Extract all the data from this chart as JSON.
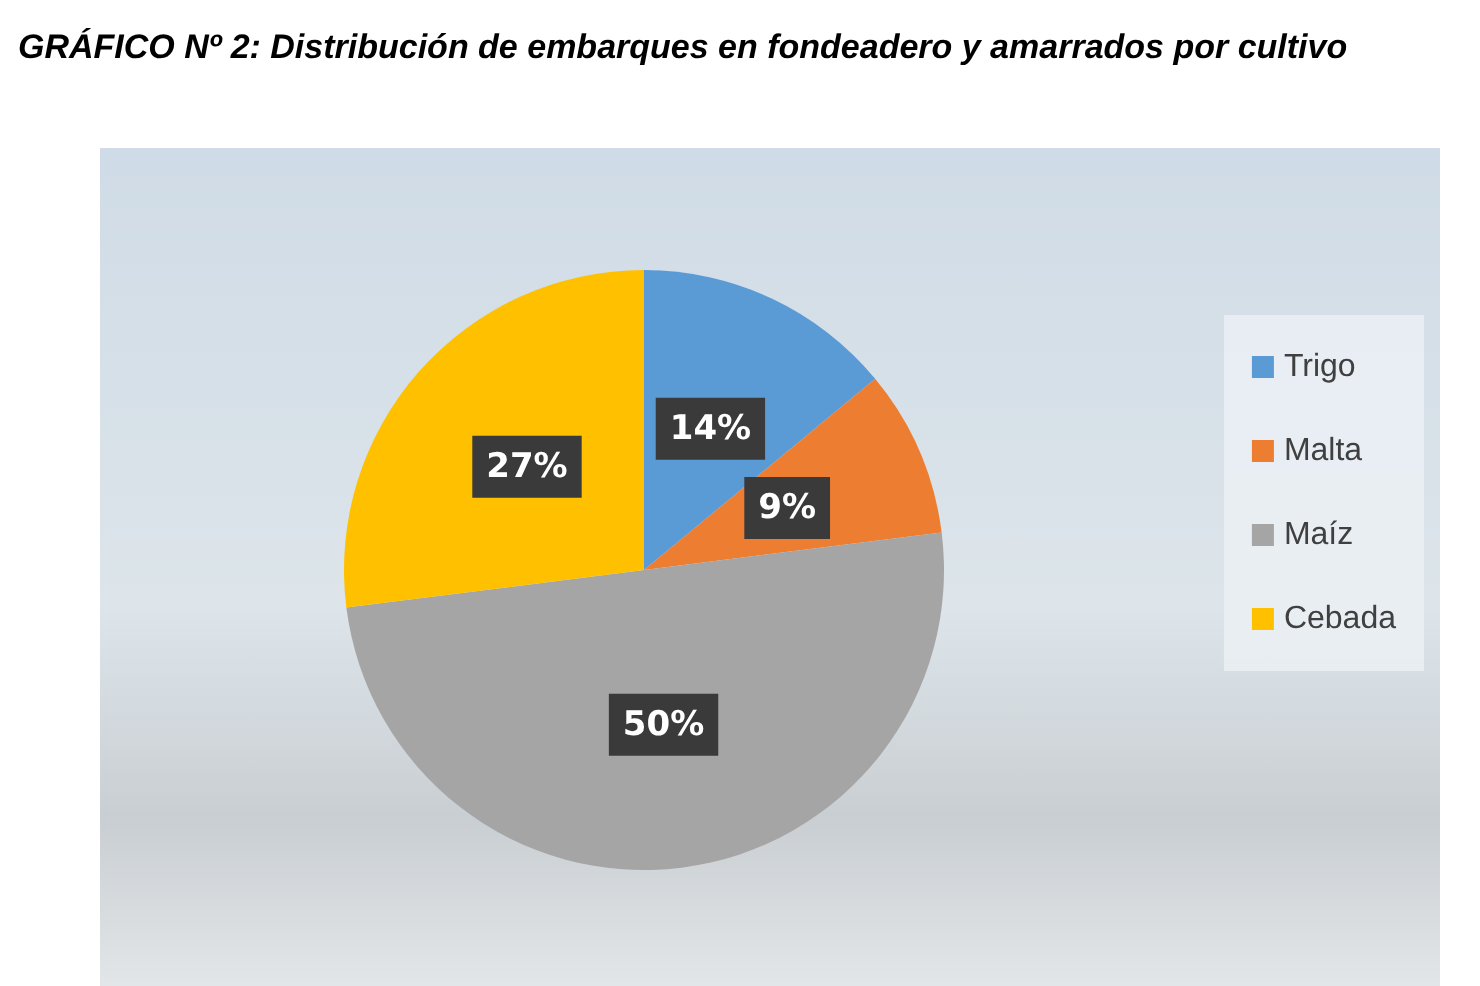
{
  "chart_data": {
    "type": "pie",
    "title": "GRÁFICO Nº 2: Distribución de embarques en fondeadero y amarrados por cultivo",
    "categories": [
      "Trigo",
      "Malta",
      "Maíz",
      "Cebada"
    ],
    "values": [
      14,
      9,
      50,
      27
    ],
    "colors": [
      "#5b9bd5",
      "#ed7d31",
      "#a5a5a5",
      "#ffc000"
    ],
    "value_labels": [
      "14%",
      "9%",
      "50%",
      "27%"
    ],
    "legend": "right"
  }
}
